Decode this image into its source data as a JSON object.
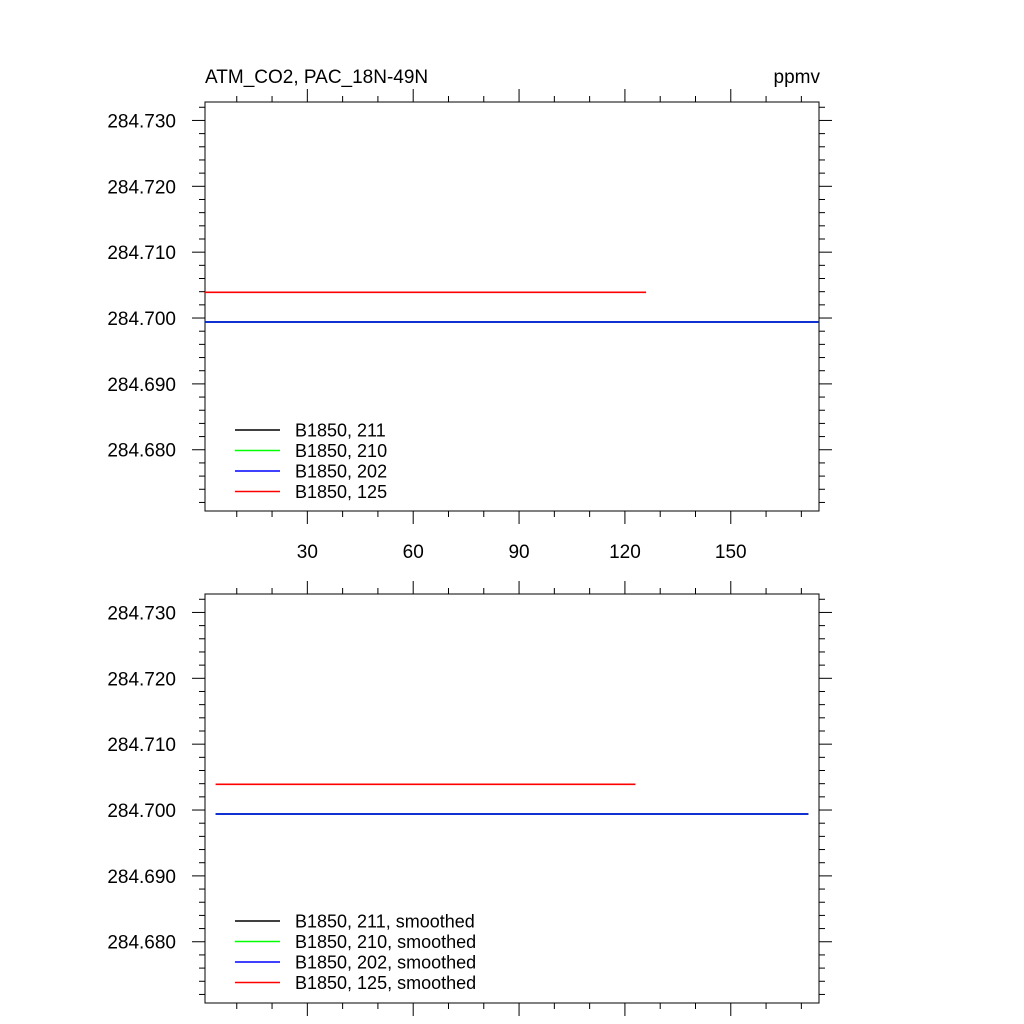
{
  "header": {
    "left_title": "ATM_CO2, PAC_18N-49N",
    "right_title": "ppmv"
  },
  "chart_data": [
    {
      "type": "line",
      "xlim": [
        1,
        175
      ],
      "ylim": [
        284.6707,
        284.7328
      ],
      "x_ticks": [
        30,
        60,
        90,
        120,
        150
      ],
      "x_tick_labels": [
        "30",
        "60",
        "90",
        "120",
        "150"
      ],
      "y_ticks": [
        284.68,
        284.69,
        284.7,
        284.71,
        284.72,
        284.73
      ],
      "y_tick_labels": [
        "284.680",
        "284.690",
        "284.700",
        "284.710",
        "284.720",
        "284.730"
      ],
      "legend_position": "bottom-left",
      "series": [
        {
          "name": "B1850, 211",
          "color": "#000000",
          "x": [
            1,
            175
          ],
          "values": [
            284.6994,
            284.6994
          ]
        },
        {
          "name": "B1850, 210",
          "color": "#00ff00",
          "x": [
            1,
            175
          ],
          "values": [
            284.6994,
            284.6994
          ]
        },
        {
          "name": "B1850, 202",
          "color": "#0000ff",
          "x": [
            1,
            175
          ],
          "values": [
            284.6994,
            284.6994
          ]
        },
        {
          "name": "B1850, 125",
          "color": "#ff0000",
          "x": [
            1,
            126
          ],
          "values": [
            284.7039,
            284.7039
          ]
        }
      ]
    },
    {
      "type": "line",
      "xlim": [
        1,
        175
      ],
      "ylim": [
        284.6707,
        284.7328
      ],
      "x_ticks": [
        30,
        60,
        90,
        120,
        150
      ],
      "x_tick_labels": [
        "",
        "",
        "",
        "",
        ""
      ],
      "y_ticks": [
        284.68,
        284.69,
        284.7,
        284.71,
        284.72,
        284.73
      ],
      "y_tick_labels": [
        "284.680",
        "284.690",
        "284.700",
        "284.710",
        "284.720",
        "284.730"
      ],
      "legend_position": "bottom-left",
      "series": [
        {
          "name": "B1850, 211, smoothed",
          "color": "#000000",
          "x": [
            4,
            172
          ],
          "values": [
            284.6994,
            284.6994
          ]
        },
        {
          "name": "B1850, 210, smoothed",
          "color": "#00ff00",
          "x": [
            4,
            172
          ],
          "values": [
            284.6994,
            284.6994
          ]
        },
        {
          "name": "B1850, 202, smoothed",
          "color": "#0000ff",
          "x": [
            4,
            172
          ],
          "values": [
            284.6994,
            284.6994
          ]
        },
        {
          "name": "B1850, 125, smoothed",
          "color": "#ff0000",
          "x": [
            4,
            123
          ],
          "values": [
            284.7039,
            284.7039
          ]
        }
      ]
    }
  ]
}
